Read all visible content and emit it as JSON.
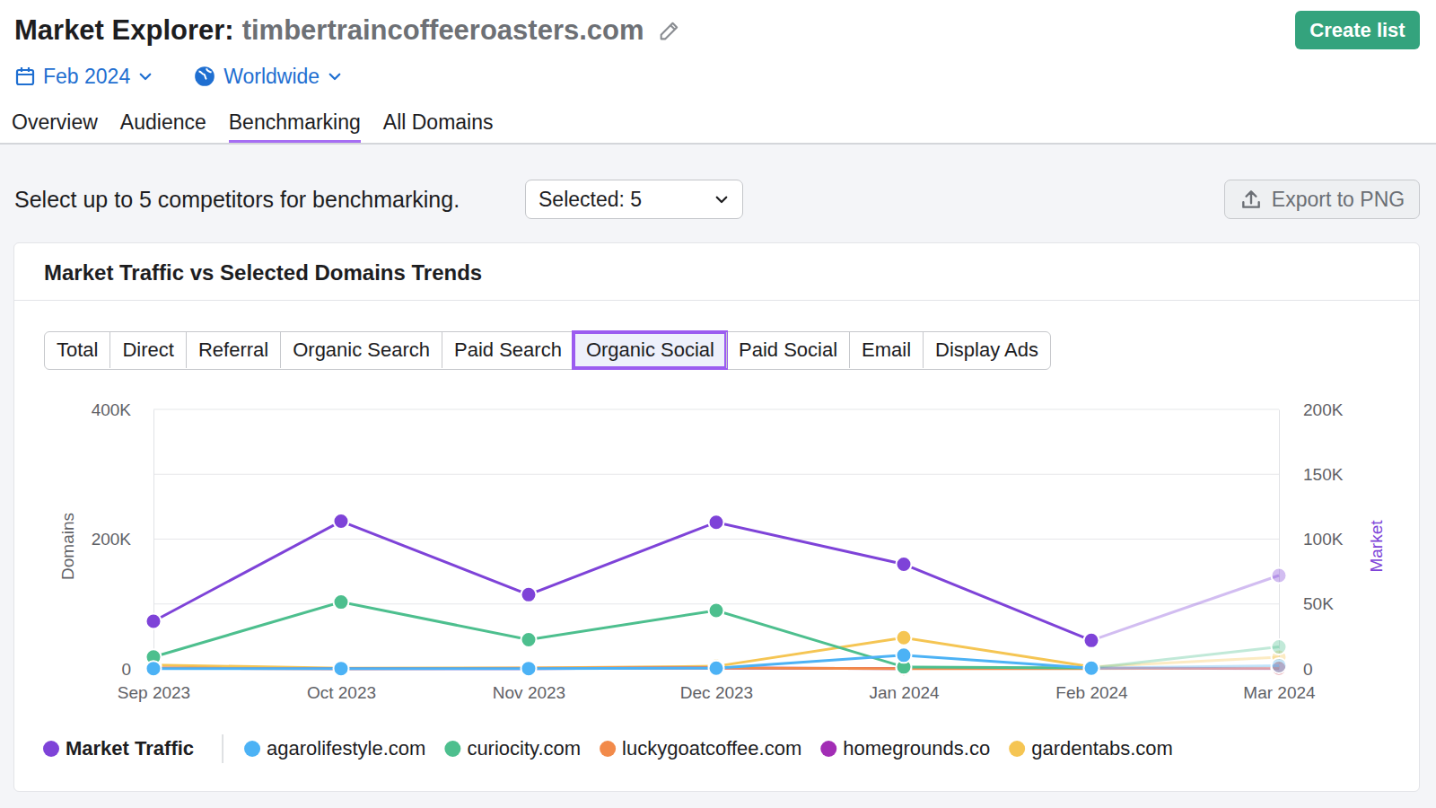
{
  "header": {
    "title": "Market Explorer:",
    "domain": "timbertraincoffeeroasters.com",
    "create_button": "Create list"
  },
  "filters": {
    "date": "Feb 2024",
    "region": "Worldwide"
  },
  "tabs": [
    {
      "label": "Overview"
    },
    {
      "label": "Audience"
    },
    {
      "label": "Benchmarking",
      "active": true
    },
    {
      "label": "All Domains"
    }
  ],
  "toolbar": {
    "prompt": "Select up to 5 competitors for benchmarking.",
    "selector": "Selected: 5",
    "export_button": "Export to PNG"
  },
  "channels": [
    {
      "label": "Total"
    },
    {
      "label": "Direct"
    },
    {
      "label": "Referral"
    },
    {
      "label": "Organic Search"
    },
    {
      "label": "Paid Search"
    },
    {
      "label": "Organic Social",
      "selected": true
    },
    {
      "label": "Paid Social"
    },
    {
      "label": "Email"
    },
    {
      "label": "Display Ads"
    }
  ],
  "chart_data": {
    "type": "line",
    "title": "Market Traffic vs Selected Domains Trends",
    "categories": [
      "Sep 2023",
      "Oct 2023",
      "Nov 2023",
      "Dec 2023",
      "Jan 2024",
      "Feb 2024",
      "Mar 2024"
    ],
    "ylabel": "Domains",
    "y2label": "Market",
    "ylim": [
      0,
      400000
    ],
    "yticks": [
      0,
      {
        "value": 200000,
        "label": "200K"
      },
      {
        "value": 400000,
        "label": "400K"
      }
    ],
    "y2lim": [
      0,
      200000
    ],
    "y2ticks": [
      0,
      {
        "value": 50000,
        "label": "50K"
      },
      {
        "value": 100000,
        "label": "100K"
      },
      {
        "value": 150000,
        "label": "150K"
      },
      {
        "value": 200000,
        "label": "200K"
      }
    ],
    "grid": true,
    "marker": "circle",
    "series": [
      {
        "name": "Market Traffic",
        "color": "#7e43d8",
        "axis": "y2",
        "values": [
          36700,
          113800,
          57200,
          113000,
          80600,
          21900,
          72000
        ]
      },
      {
        "name": "agarolifestyle.com",
        "color": "#4cb2f5",
        "values": [
          500,
          500,
          500,
          1000,
          21000,
          1000,
          5000
        ]
      },
      {
        "name": "curiocity.com",
        "color": "#4dbf8e",
        "values": [
          18400,
          103000,
          45000,
          90000,
          3000,
          1500,
          34000
        ]
      },
      {
        "name": "luckygoatcoffee.com",
        "color": "#f28a4a",
        "values": [
          1000,
          500,
          1000,
          1500,
          500,
          500,
          1000
        ]
      },
      {
        "name": "homegrounds.co",
        "color": "#a22db5",
        "values": [
          1000,
          500,
          500,
          1500,
          500,
          1000,
          500
        ]
      },
      {
        "name": "gardentabs.com",
        "color": "#f5c553",
        "values": [
          6000,
          1000,
          1500,
          4000,
          48000,
          3000,
          18000
        ]
      }
    ]
  }
}
